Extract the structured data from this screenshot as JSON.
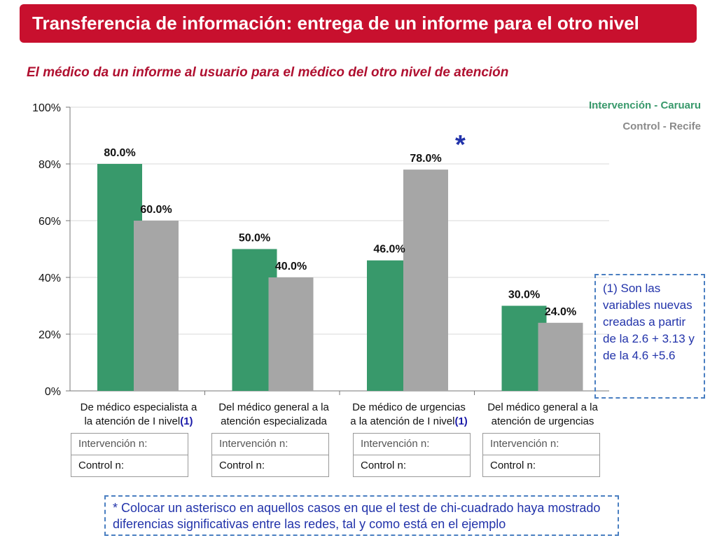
{
  "title": "Transferencia de información: entrega de un informe para el otro nivel",
  "subtitle": "El médico da un informe al usuario para el médico del otro nivel de atención",
  "colors": {
    "banner": "#c8102e",
    "intervention": "#38996b",
    "control": "#a6a6a6",
    "note": "#2233aa"
  },
  "legend": {
    "intervention": "Intervención - Caruaru",
    "control": "Control - Recife"
  },
  "chart_data": {
    "type": "bar",
    "categories": [
      "De médico especialista a la atención de I nivel",
      "Del médico general a la atención especializada",
      "De médico de urgencias a la atención de I nivel",
      "Del médico general a la atención de urgencias"
    ],
    "series": [
      {
        "name": "Intervención - Caruaru",
        "values": [
          80.0,
          50.0,
          46.0,
          30.0
        ]
      },
      {
        "name": "Control - Recife",
        "values": [
          60.0,
          40.0,
          78.0,
          24.0
        ]
      }
    ],
    "data_labels": [
      [
        "80.0%",
        "50.0%",
        "46.0%",
        "30.0%"
      ],
      [
        "60.0%",
        "40.0%",
        "78.0%",
        "24.0%"
      ]
    ],
    "yticks": [
      "0%",
      "20%",
      "40%",
      "60%",
      "80%",
      "100%"
    ],
    "ylim": [
      0,
      100
    ],
    "significance_marker": {
      "category_index": 2,
      "symbol": "*"
    }
  },
  "category_labels": [
    {
      "line1": "De médico especialista a",
      "line2": "la atención de I nivel",
      "ref": "(1)"
    },
    {
      "line1": "Del médico general a la",
      "line2": "atención especializada",
      "ref": ""
    },
    {
      "line1": "De médico de urgencias",
      "line2": "a la atención de I nivel",
      "ref": "(1)"
    },
    {
      "line1": "Del médico general a la",
      "line2": "atención de urgencias",
      "ref": ""
    }
  ],
  "n_tables": [
    {
      "intervention": "Intervención n:",
      "control": "Control n:"
    },
    {
      "intervention": "Intervención n:",
      "control": "Control n:"
    },
    {
      "intervention": "Intervención n:",
      "control": "Control n:"
    },
    {
      "intervention": "Intervención n:",
      "control": "Control n:"
    }
  ],
  "note": "(1) Son las variables nuevas creadas a partir de la 2.6 + 3.13 y de la 4.6 +5.6",
  "footer_note": "* Colocar un asterisco en aquellos casos en que el test de chi-cuadrado haya mostrado diferencias significativas entre las redes, tal y como está en el ejemplo"
}
